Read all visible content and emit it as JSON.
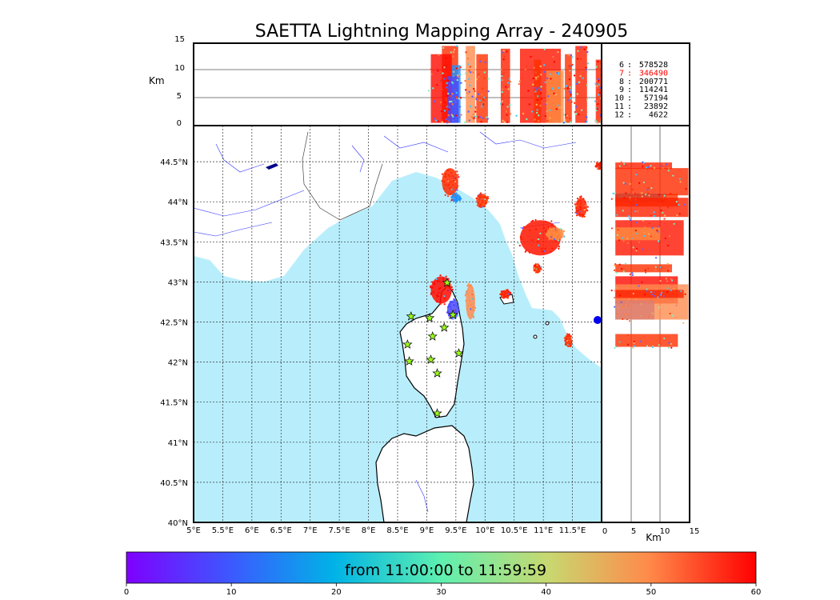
{
  "chart_data": {
    "type": "scatter",
    "title": "SAETTA Lightning Mapping Array - 240905",
    "time_range_label": "from 11:00:00 to 11:59:59",
    "map": {
      "x_ticks": [
        "5°E",
        "5.5°E",
        "6°E",
        "6.5°E",
        "7°E",
        "7.5°E",
        "8°E",
        "8.5°E",
        "9°E",
        "9.5°E",
        "10°E",
        "10.5°E",
        "11°E",
        "11.5°E"
      ],
      "y_ticks": [
        "40°N",
        "40.5°N",
        "41°N",
        "41.5°N",
        "42°N",
        "42.5°N",
        "43°N",
        "43.5°N",
        "44°N",
        "44.5°N"
      ],
      "xlim": [
        5.0,
        12.0
      ],
      "ylim": [
        40.0,
        44.95
      ],
      "grid": true
    },
    "altitude_panel": {
      "ylabel": "Km",
      "ylim": [
        0,
        15
      ],
      "y_ticks": [
        "0",
        "5",
        "10",
        "15"
      ],
      "gridlines": [
        5,
        10
      ]
    },
    "side_panel": {
      "xlabel": "Km",
      "xlim": [
        0,
        15
      ],
      "x_ticks": [
        "0",
        "5",
        "10",
        "15"
      ],
      "gridlines": [
        5,
        10
      ]
    },
    "station_counts": [
      {
        "stations": "6",
        "sep": ":",
        "count": "578528",
        "color": "#000000"
      },
      {
        "stations": "7",
        "sep": ":",
        "count": "346490",
        "color": "#ff0000"
      },
      {
        "stations": "8",
        "sep": ":",
        "count": "200771",
        "color": "#000000"
      },
      {
        "stations": "9",
        "sep": ":",
        "count": "114241",
        "color": "#000000"
      },
      {
        "stations": "10",
        "sep": ":",
        "count": "57194",
        "color": "#000000"
      },
      {
        "stations": "11",
        "sep": ":",
        "count": "23892",
        "color": "#000000"
      },
      {
        "stations": "12",
        "sep": ":",
        "count": "4622",
        "color": "#000000"
      }
    ],
    "colorbar": {
      "ticks": [
        "0",
        "10",
        "20",
        "30",
        "40",
        "50",
        "60"
      ],
      "range": [
        0,
        60
      ],
      "colormap": "rainbow"
    },
    "stations": [
      {
        "lon": 8.73,
        "lat": 42.57
      },
      {
        "lon": 9.05,
        "lat": 42.55
      },
      {
        "lon": 9.35,
        "lat": 42.99
      },
      {
        "lon": 9.45,
        "lat": 42.59
      },
      {
        "lon": 9.3,
        "lat": 42.43
      },
      {
        "lon": 9.1,
        "lat": 42.32
      },
      {
        "lon": 8.67,
        "lat": 42.22
      },
      {
        "lon": 8.7,
        "lat": 42.01
      },
      {
        "lon": 9.07,
        "lat": 42.03
      },
      {
        "lon": 9.55,
        "lat": 42.11
      },
      {
        "lon": 9.18,
        "lat": 41.86
      },
      {
        "lon": 9.18,
        "lat": 41.36
      }
    ],
    "clusters": [
      {
        "lon": 9.4,
        "lat": 44.25,
        "dlon": 0.14,
        "dlat": 0.17,
        "alt": 11,
        "color": "#ff2a00"
      },
      {
        "lon": 9.5,
        "lat": 44.05,
        "dlon": 0.08,
        "dlat": 0.05,
        "alt": 7,
        "color": "#1e90ff"
      },
      {
        "lon": 9.95,
        "lat": 44.02,
        "dlon": 0.1,
        "dlat": 0.08,
        "alt": 9,
        "color": "#ff3000"
      },
      {
        "lon": 10.95,
        "lat": 43.55,
        "dlon": 0.35,
        "dlat": 0.22,
        "alt": 10,
        "color": "#ff1500"
      },
      {
        "lon": 11.65,
        "lat": 43.93,
        "dlon": 0.1,
        "dlat": 0.12,
        "alt": 12,
        "color": "#ff2000"
      },
      {
        "lon": 11.2,
        "lat": 43.6,
        "dlon": 0.15,
        "dlat": 0.08,
        "alt": 6,
        "color": "#ff8c40"
      },
      {
        "lon": 10.9,
        "lat": 43.17,
        "dlon": 0.06,
        "dlat": 0.05,
        "alt": 8,
        "color": "#ff3000"
      },
      {
        "lon": 9.25,
        "lat": 42.9,
        "dlon": 0.18,
        "dlat": 0.17,
        "alt": 9,
        "color": "#ff0a00"
      },
      {
        "lon": 9.45,
        "lat": 42.65,
        "dlon": 0.1,
        "dlat": 0.12,
        "alt": 5,
        "color": "#4a4aff"
      },
      {
        "lon": 9.75,
        "lat": 42.75,
        "dlon": 0.08,
        "dlat": 0.22,
        "alt": 11,
        "color": "#ff8c50"
      },
      {
        "lon": 10.35,
        "lat": 42.85,
        "dlon": 0.08,
        "dlat": 0.05,
        "alt": 10,
        "color": "#ff2000"
      },
      {
        "lon": 11.43,
        "lat": 42.27,
        "dlon": 0.06,
        "dlat": 0.08,
        "alt": 9,
        "color": "#ff3000"
      },
      {
        "lon": 11.95,
        "lat": 44.45,
        "dlon": 0.05,
        "dlat": 0.04,
        "alt": 8,
        "color": "#ff2000"
      }
    ]
  }
}
